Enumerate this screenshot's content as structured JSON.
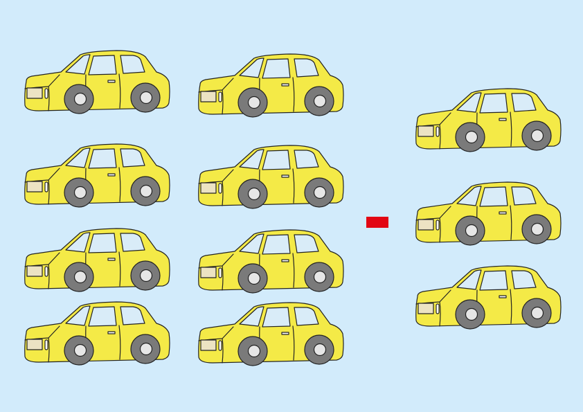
{
  "scene": {
    "description_name": "car-subtraction-worksheet",
    "colors": {
      "background": "#d2ebfb",
      "car_body": "#f4ea47",
      "car_window": "#d9ecf8",
      "tire": "#7a7a7a",
      "hubcap": "#e6e6e6",
      "outline": "#222222",
      "headlight": "#ece3c3",
      "minus_sign": "#e20613"
    },
    "groups": {
      "minuend": {
        "count": 8
      },
      "operator": {
        "symbol": "minus"
      },
      "subtrahend": {
        "count": 3
      }
    }
  }
}
